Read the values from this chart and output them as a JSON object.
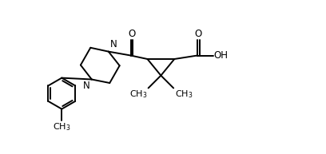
{
  "bg_color": "#ffffff",
  "line_color": "#000000",
  "line_width": 1.4,
  "font_size": 8.5,
  "figsize": [
    4.08,
    1.93
  ],
  "dpi": 100,
  "xlim": [
    0,
    10
  ],
  "ylim": [
    0,
    5
  ]
}
